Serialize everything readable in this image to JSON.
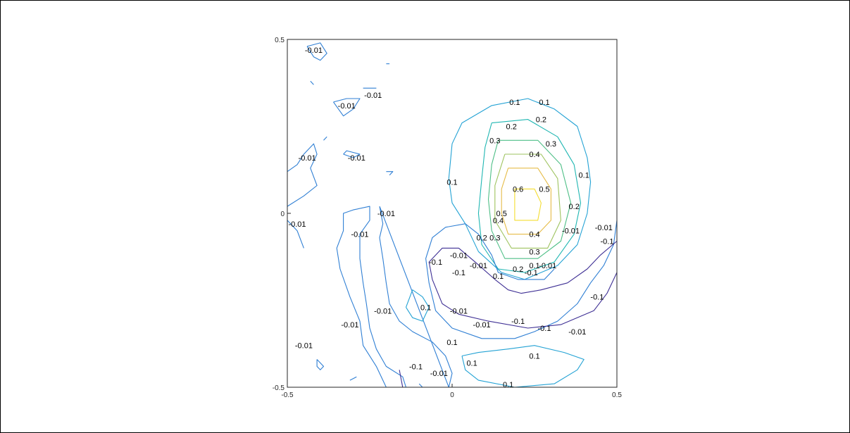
{
  "chart_data": {
    "type": "contour",
    "title": "",
    "xlabel": "",
    "ylabel": "",
    "xlim": [
      -0.5,
      0.5
    ],
    "ylim": [
      -0.5,
      0.5
    ],
    "x_ticks": [
      "-0.5",
      "0",
      "0.5"
    ],
    "y_ticks": [
      "0.5",
      "0",
      "-0.5"
    ],
    "grid": false,
    "box": true,
    "colormap": "parula",
    "levels": [
      -0.1,
      -0.01,
      0.1,
      0.2,
      0.3,
      0.4,
      0.5,
      0.6
    ],
    "level_colors": {
      "-0.1": "#3e2f94",
      "-0.01": "#2f7fd4",
      "0.1": "#23a2d4",
      "0.2": "#1fb6b2",
      "0.3": "#4fbf87",
      "0.4": "#9ec35f",
      "0.5": "#e6bc48",
      "0.6": "#f4dd30"
    },
    "contours": [
      {
        "level": 0.6,
        "points": [
          [
            0.19,
            0.07
          ],
          [
            0.25,
            0.07
          ],
          [
            0.27,
            0.03
          ],
          [
            0.26,
            -0.02
          ],
          [
            0.19,
            -0.02
          ],
          [
            0.19,
            0.02
          ]
        ]
      },
      {
        "level": 0.5,
        "points": [
          [
            0.17,
            0.13
          ],
          [
            0.26,
            0.13
          ],
          [
            0.3,
            0.07
          ],
          [
            0.3,
            -0.02
          ],
          [
            0.26,
            -0.06
          ],
          [
            0.17,
            -0.06
          ],
          [
            0.15,
            0.0
          ],
          [
            0.15,
            0.07
          ]
        ]
      },
      {
        "level": 0.4,
        "points": [
          [
            0.16,
            0.17
          ],
          [
            0.27,
            0.17
          ],
          [
            0.32,
            0.1
          ],
          [
            0.33,
            -0.02
          ],
          [
            0.29,
            -0.1
          ],
          [
            0.18,
            -0.1
          ],
          [
            0.13,
            -0.02
          ],
          [
            0.13,
            0.08
          ]
        ]
      },
      {
        "level": 0.3,
        "points": [
          [
            0.14,
            0.21
          ],
          [
            0.26,
            0.21
          ],
          [
            0.33,
            0.14
          ],
          [
            0.36,
            0.03
          ],
          [
            0.33,
            -0.08
          ],
          [
            0.26,
            -0.13
          ],
          [
            0.16,
            -0.13
          ],
          [
            0.12,
            -0.05
          ],
          [
            0.11,
            0.04
          ],
          [
            0.12,
            0.14
          ]
        ]
      },
      {
        "level": 0.2,
        "points": [
          [
            0.12,
            0.26
          ],
          [
            0.23,
            0.27
          ],
          [
            0.32,
            0.22
          ],
          [
            0.37,
            0.14
          ],
          [
            0.39,
            0.03
          ],
          [
            0.37,
            -0.06
          ],
          [
            0.31,
            -0.14
          ],
          [
            0.22,
            -0.17
          ],
          [
            0.14,
            -0.16
          ],
          [
            0.09,
            -0.09
          ],
          [
            0.08,
            0.0
          ],
          [
            0.09,
            0.1
          ],
          [
            0.1,
            0.19
          ]
        ]
      },
      {
        "level": 0.1,
        "points": [
          [
            0.0,
            0.2
          ],
          [
            0.03,
            0.26
          ],
          [
            0.12,
            0.31
          ],
          [
            0.23,
            0.33
          ],
          [
            0.31,
            0.3
          ],
          [
            0.38,
            0.25
          ],
          [
            0.41,
            0.16
          ],
          [
            0.42,
            0.09
          ],
          [
            0.41,
            0.0
          ],
          [
            0.38,
            -0.09
          ],
          [
            0.32,
            -0.15
          ],
          [
            0.22,
            -0.19
          ],
          [
            0.15,
            -0.17
          ],
          [
            0.08,
            -0.11
          ],
          [
            0.04,
            -0.03
          ],
          [
            0.0,
            0.03
          ],
          [
            -0.01,
            0.1
          ]
        ]
      },
      {
        "level": -0.01,
        "points": [
          [
            0.5,
            -0.02
          ],
          [
            0.49,
            -0.09
          ],
          [
            0.46,
            -0.15
          ],
          [
            0.42,
            -0.2
          ],
          [
            0.38,
            -0.26
          ],
          [
            0.32,
            -0.31
          ],
          [
            0.25,
            -0.34
          ],
          [
            0.19,
            -0.36
          ],
          [
            0.09,
            -0.36
          ],
          [
            0.0,
            -0.33
          ],
          [
            -0.05,
            -0.28
          ],
          [
            -0.07,
            -0.2
          ],
          [
            -0.08,
            -0.13
          ],
          [
            -0.06,
            -0.07
          ],
          [
            -0.02,
            -0.04
          ],
          [
            0.04,
            -0.03
          ],
          [
            0.08,
            -0.06
          ],
          [
            0.12,
            -0.12
          ],
          [
            0.14,
            -0.17
          ],
          [
            0.2,
            -0.19
          ],
          [
            0.28,
            -0.19
          ],
          [
            0.31,
            -0.16
          ]
        ]
      },
      {
        "level": -0.1,
        "points": [
          [
            0.5,
            -0.08
          ],
          [
            0.45,
            -0.12
          ],
          [
            0.41,
            -0.16
          ],
          [
            0.35,
            -0.2
          ],
          [
            0.27,
            -0.22
          ],
          [
            0.21,
            -0.23
          ],
          [
            0.17,
            -0.22
          ],
          [
            0.13,
            -0.19
          ],
          [
            0.07,
            -0.14
          ],
          [
            0.02,
            -0.1
          ],
          [
            -0.03,
            -0.1
          ],
          [
            -0.07,
            -0.14
          ],
          [
            -0.06,
            -0.19
          ],
          [
            -0.03,
            -0.26
          ],
          [
            0.02,
            -0.29
          ],
          [
            0.11,
            -0.31
          ],
          [
            0.23,
            -0.33
          ],
          [
            0.33,
            -0.32
          ],
          [
            0.43,
            -0.28
          ],
          [
            0.47,
            -0.23
          ],
          [
            0.5,
            -0.17
          ]
        ]
      },
      {
        "level": -0.01,
        "points": [
          [
            -0.5,
            0.02
          ],
          [
            -0.45,
            0.05
          ],
          [
            -0.41,
            0.08
          ],
          [
            -0.43,
            0.13
          ],
          [
            -0.41,
            0.17
          ],
          [
            -0.42,
            0.2
          ],
          [
            -0.45,
            0.17
          ],
          [
            -0.47,
            0.14
          ],
          [
            -0.5,
            0.12
          ]
        ]
      },
      {
        "level": -0.01,
        "points": [
          [
            -0.5,
            -0.02
          ],
          [
            -0.47,
            -0.05
          ],
          [
            -0.45,
            -0.1
          ]
        ]
      },
      {
        "level": -0.01,
        "points": [
          [
            -0.2,
            -0.54
          ],
          [
            -0.23,
            -0.44
          ],
          [
            -0.27,
            -0.38
          ],
          [
            -0.28,
            -0.31
          ],
          [
            -0.31,
            -0.24
          ],
          [
            -0.34,
            -0.16
          ],
          [
            -0.35,
            -0.1
          ],
          [
            -0.33,
            -0.05
          ],
          [
            -0.33,
            0.0
          ],
          [
            -0.3,
            0.01
          ],
          [
            -0.25,
            0.02
          ],
          [
            -0.25,
            -0.02
          ],
          [
            -0.28,
            -0.06
          ],
          [
            -0.28,
            -0.13
          ],
          [
            -0.27,
            -0.2
          ],
          [
            -0.26,
            -0.26
          ],
          [
            -0.25,
            -0.33
          ],
          [
            -0.23,
            -0.39
          ],
          [
            -0.2,
            -0.44
          ],
          [
            -0.15,
            -0.47
          ],
          [
            -0.14,
            -0.5
          ]
        ]
      },
      {
        "level": -0.01,
        "points": [
          [
            -0.22,
            0.02
          ],
          [
            -0.21,
            -0.03
          ],
          [
            -0.22,
            -0.07
          ],
          [
            -0.21,
            -0.13
          ],
          [
            -0.2,
            -0.2
          ],
          [
            -0.19,
            -0.26
          ],
          [
            -0.16,
            -0.31
          ],
          [
            -0.12,
            -0.34
          ],
          [
            -0.06,
            -0.37
          ],
          [
            -0.02,
            -0.41
          ],
          [
            0.0,
            -0.46
          ],
          [
            -0.01,
            -0.5
          ]
        ]
      },
      {
        "level": 0.1,
        "points": [
          [
            -0.14,
            -0.27
          ],
          [
            -0.12,
            -0.22
          ],
          [
            -0.09,
            -0.24
          ],
          [
            -0.07,
            -0.27
          ],
          [
            -0.09,
            -0.31
          ],
          [
            -0.12,
            -0.3
          ]
        ]
      },
      {
        "level": 0.1,
        "points": [
          [
            0.03,
            -0.41
          ],
          [
            0.08,
            -0.4
          ],
          [
            0.17,
            -0.39
          ],
          [
            0.25,
            -0.38
          ],
          [
            0.34,
            -0.4
          ],
          [
            0.4,
            -0.42
          ],
          [
            0.38,
            -0.45
          ],
          [
            0.31,
            -0.49
          ],
          [
            0.19,
            -0.5
          ],
          [
            0.08,
            -0.48
          ],
          [
            0.04,
            -0.45
          ]
        ]
      },
      {
        "level": -0.01,
        "points": [
          [
            -0.44,
            0.48
          ],
          [
            -0.4,
            0.49
          ],
          [
            -0.38,
            0.46
          ],
          [
            -0.4,
            0.44
          ],
          [
            -0.42,
            0.45
          ]
        ]
      },
      {
        "level": -0.01,
        "points": [
          [
            -0.36,
            0.32
          ],
          [
            -0.32,
            0.33
          ],
          [
            -0.28,
            0.33
          ],
          [
            -0.3,
            0.3
          ],
          [
            -0.33,
            0.28
          ]
        ]
      },
      {
        "level": -0.01,
        "points": [
          [
            -0.27,
            0.36
          ],
          [
            -0.23,
            0.36
          ]
        ]
      },
      {
        "level": -0.01,
        "points": [
          [
            -0.33,
            0.17
          ],
          [
            -0.3,
            0.16
          ],
          [
            -0.28,
            0.17
          ],
          [
            -0.32,
            0.18
          ]
        ]
      },
      {
        "level": -0.01,
        "points": [
          [
            -0.41,
            -0.42
          ],
          [
            -0.39,
            -0.44
          ],
          [
            -0.4,
            -0.45
          ],
          [
            -0.41,
            -0.44
          ]
        ]
      },
      {
        "level": -0.01,
        "points": [
          [
            -0.31,
            -0.48
          ],
          [
            -0.29,
            -0.47
          ]
        ]
      },
      {
        "level": -0.01,
        "points": [
          [
            -0.1,
            -0.49
          ],
          [
            -0.09,
            -0.5
          ]
        ]
      },
      {
        "level": -0.1,
        "points": [
          [
            -0.16,
            -0.45
          ],
          [
            -0.15,
            -0.5
          ]
        ]
      },
      {
        "level": -0.01,
        "points": [
          [
            -0.2,
            0.43
          ],
          [
            -0.19,
            0.43
          ]
        ]
      },
      {
        "level": -0.01,
        "points": [
          [
            -0.19,
            0.11
          ],
          [
            -0.18,
            0.12
          ],
          [
            -0.2,
            0.12
          ]
        ]
      },
      {
        "level": -0.01,
        "points": [
          [
            -0.43,
            0.38
          ],
          [
            -0.42,
            0.37
          ]
        ]
      },
      {
        "level": -0.01,
        "points": [
          [
            -0.39,
            0.21
          ],
          [
            -0.38,
            0.22
          ]
        ]
      }
    ],
    "labels": [
      {
        "text": "-0.01",
        "x": -0.42,
        "y": 0.47
      },
      {
        "text": "-0.01",
        "x": -0.24,
        "y": 0.34
      },
      {
        "text": "-0.01",
        "x": -0.32,
        "y": 0.31
      },
      {
        "text": "-0.01",
        "x": -0.44,
        "y": 0.16
      },
      {
        "text": "-0.01",
        "x": -0.29,
        "y": 0.16
      },
      {
        "text": "-0.01",
        "x": -0.47,
        "y": -0.03
      },
      {
        "text": "-0.01",
        "x": -0.2,
        "y": 0.0
      },
      {
        "text": "-0.01",
        "x": -0.28,
        "y": -0.06
      },
      {
        "text": "-0.01",
        "x": -0.31,
        "y": -0.32
      },
      {
        "text": "-0.01",
        "x": -0.21,
        "y": -0.28
      },
      {
        "text": "-0.01",
        "x": -0.45,
        "y": -0.38
      },
      {
        "text": "0.1",
        "x": 0.19,
        "y": 0.32
      },
      {
        "text": "0.1",
        "x": 0.28,
        "y": 0.32
      },
      {
        "text": "0.2",
        "x": 0.18,
        "y": 0.25
      },
      {
        "text": "0.2",
        "x": 0.27,
        "y": 0.27
      },
      {
        "text": "0.3",
        "x": 0.3,
        "y": 0.2
      },
      {
        "text": "0.3",
        "x": 0.13,
        "y": 0.21
      },
      {
        "text": "0.4",
        "x": 0.25,
        "y": 0.17
      },
      {
        "text": "0.5",
        "x": 0.28,
        "y": 0.07
      },
      {
        "text": "0.6",
        "x": 0.2,
        "y": 0.07
      },
      {
        "text": "0.1",
        "x": 0.4,
        "y": 0.11
      },
      {
        "text": "0.1",
        "x": 0.0,
        "y": 0.09
      },
      {
        "text": "0.2",
        "x": 0.37,
        "y": 0.02
      },
      {
        "text": "0.5",
        "x": 0.15,
        "y": 0.0
      },
      {
        "text": "0.4",
        "x": 0.14,
        "y": -0.02
      },
      {
        "text": "0.4",
        "x": 0.25,
        "y": -0.06
      },
      {
        "text": "0.3",
        "x": 0.25,
        "y": -0.11
      },
      {
        "text": "0.3",
        "x": 0.13,
        "y": -0.07
      },
      {
        "text": "0.2",
        "x": 0.09,
        "y": -0.07
      },
      {
        "text": "0.2",
        "x": 0.2,
        "y": -0.16
      },
      {
        "text": "0.1",
        "x": 0.25,
        "y": -0.15
      },
      {
        "text": "0.1",
        "x": 0.14,
        "y": -0.18
      },
      {
        "text": "-0.01",
        "x": 0.08,
        "y": -0.15
      },
      {
        "text": "-0.01",
        "x": 0.29,
        "y": -0.15
      },
      {
        "text": "-0.1",
        "x": 0.24,
        "y": -0.17
      },
      {
        "text": "-0.01",
        "x": 0.36,
        "y": -0.05
      },
      {
        "text": "-0.01",
        "x": 0.46,
        "y": -0.04
      },
      {
        "text": "-0.1",
        "x": 0.47,
        "y": -0.08
      },
      {
        "text": "-0.1",
        "x": -0.05,
        "y": -0.14
      },
      {
        "text": "-0.01",
        "x": 0.02,
        "y": -0.12
      },
      {
        "text": "-0.1",
        "x": 0.02,
        "y": -0.17
      },
      {
        "text": "-0.1",
        "x": 0.44,
        "y": -0.24
      },
      {
        "text": "-0.01",
        "x": 0.02,
        "y": -0.28
      },
      {
        "text": "-0.1",
        "x": 0.2,
        "y": -0.31
      },
      {
        "text": "-0.1",
        "x": 0.28,
        "y": -0.33
      },
      {
        "text": "-0.01",
        "x": 0.09,
        "y": -0.32
      },
      {
        "text": "-0.01",
        "x": 0.38,
        "y": -0.34
      },
      {
        "text": "0.1",
        "x": -0.08,
        "y": -0.27
      },
      {
        "text": "0.1",
        "x": 0.0,
        "y": -0.37
      },
      {
        "text": "0.1",
        "x": 0.06,
        "y": -0.43
      },
      {
        "text": "0.1",
        "x": 0.25,
        "y": -0.41
      },
      {
        "text": "0.1",
        "x": 0.17,
        "y": -0.5
      },
      {
        "text": "-0.1",
        "x": -0.11,
        "y": -0.44
      },
      {
        "text": "-0.01",
        "x": -0.04,
        "y": -0.46
      }
    ]
  }
}
